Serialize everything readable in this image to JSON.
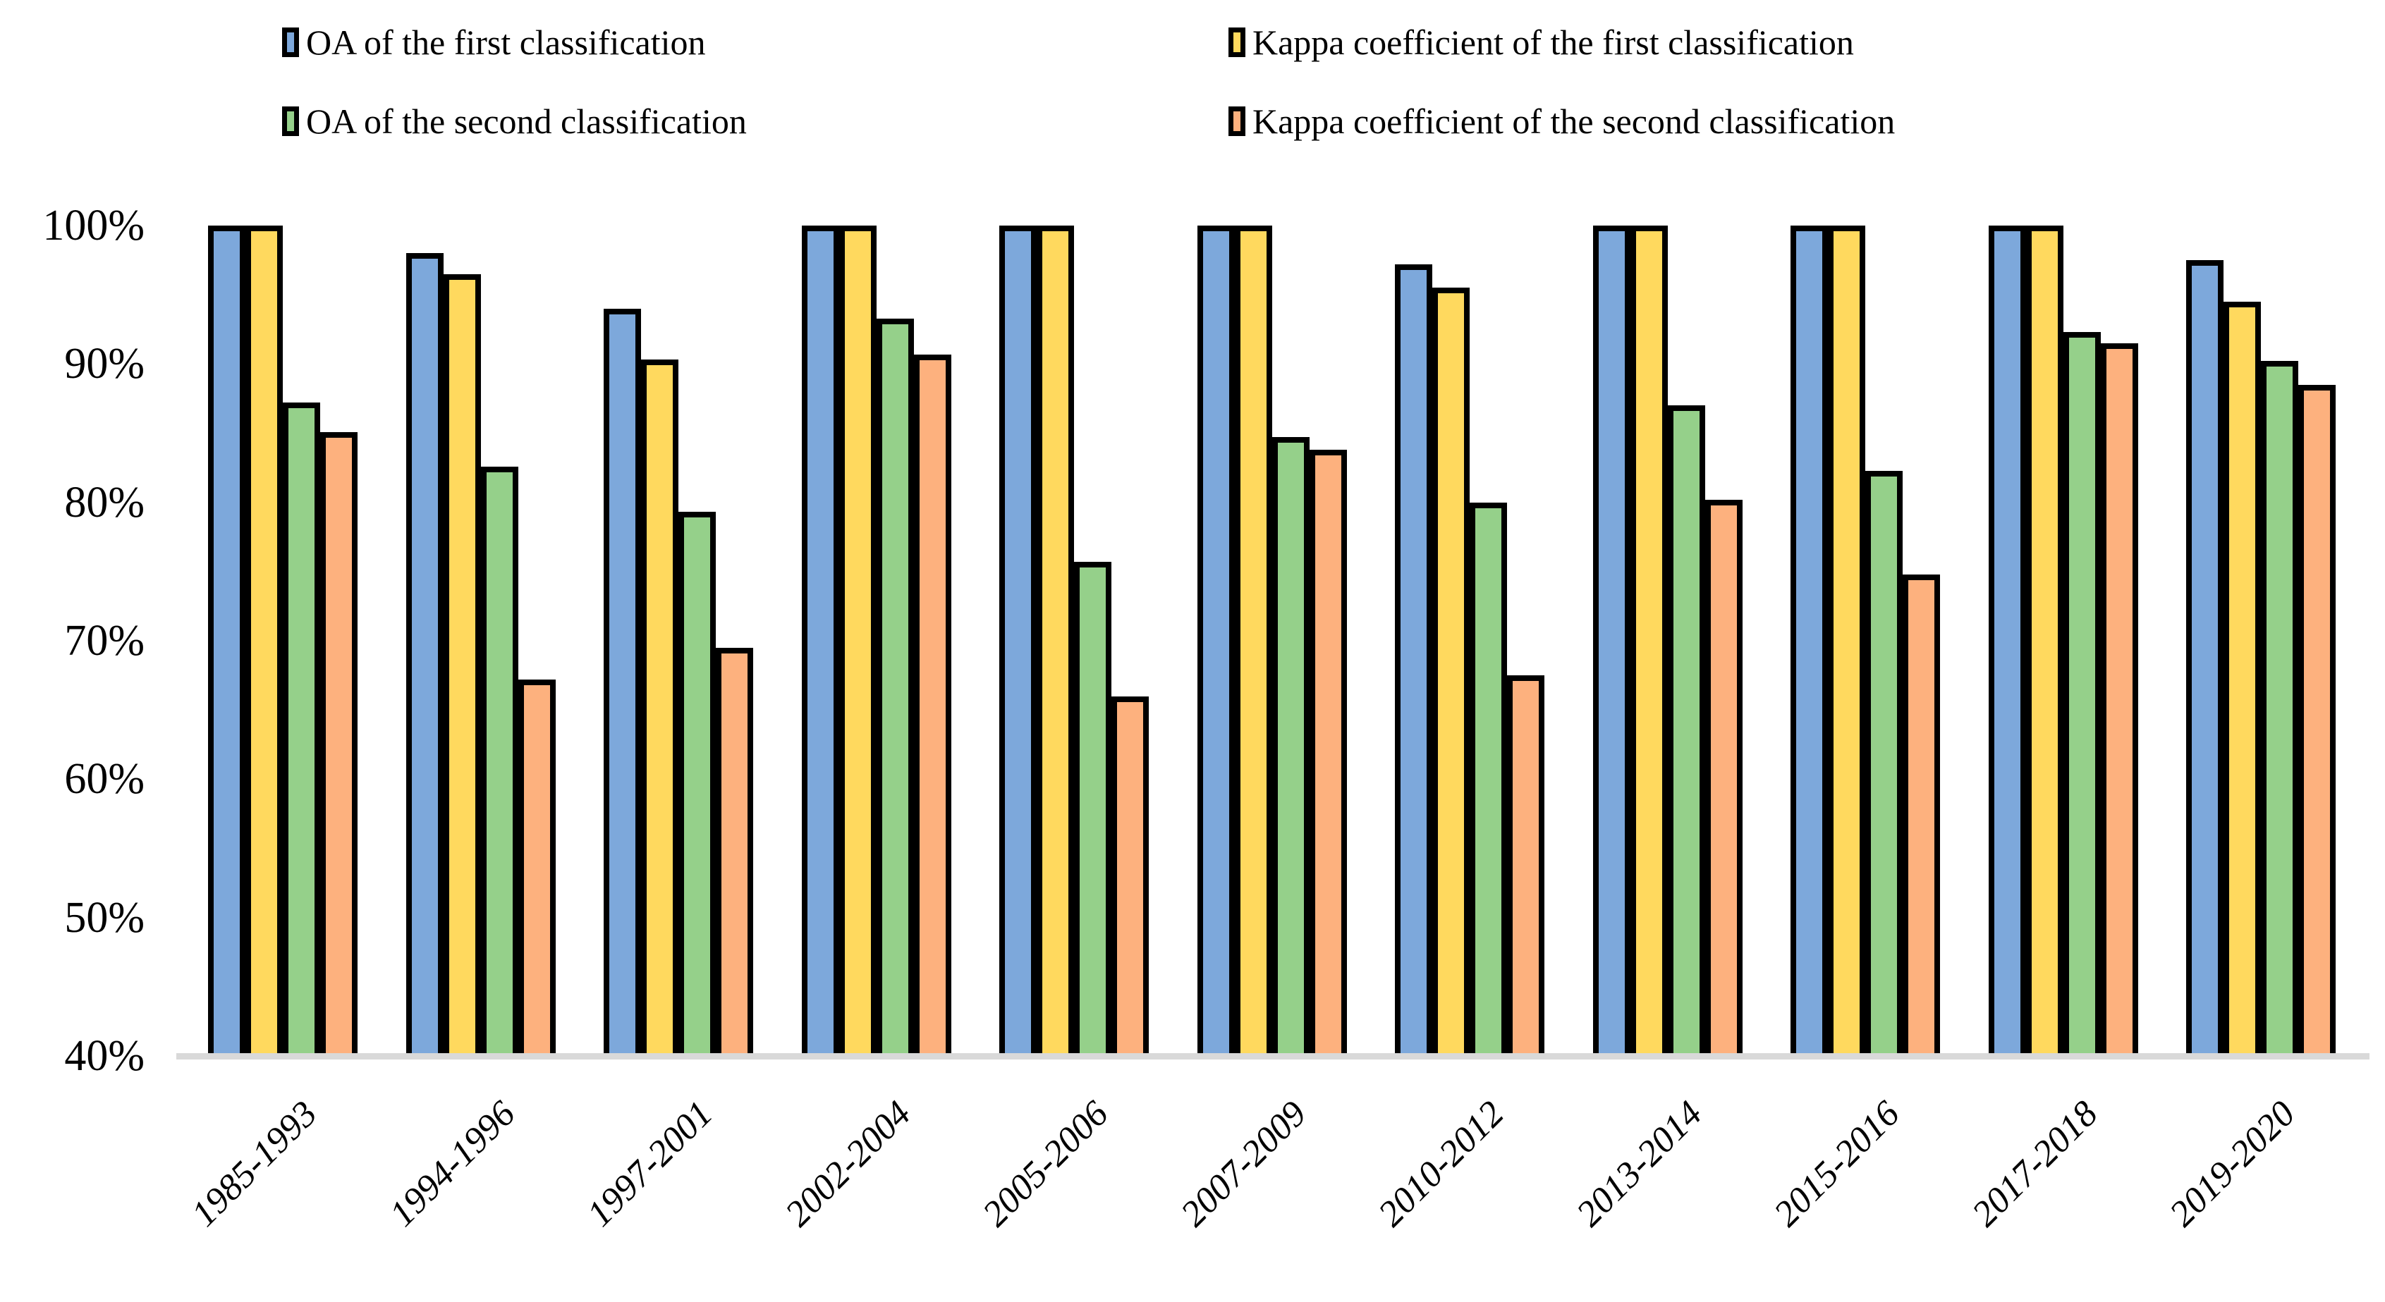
{
  "chart_data": {
    "type": "bar",
    "title": "",
    "xlabel": "",
    "ylabel": "",
    "categories": [
      "1985-1993",
      "1994-1996",
      "1997-2001",
      "2002-2004",
      "2005-2006",
      "2007-2009",
      "2010-2012",
      "2013-2014",
      "2015-2016",
      "2017-2018",
      "2019-2020"
    ],
    "series": [
      {
        "name": "OA of the first classification",
        "color": "#7DA8DB",
        "values": [
          100,
          98,
          94,
          100,
          100,
          100,
          97.2,
          100,
          100,
          100,
          97.5
        ]
      },
      {
        "name": "Kappa coefficient of the first classification",
        "color": "#FFD95E",
        "values": [
          100,
          96.5,
          90.3,
          100,
          100,
          100,
          95.5,
          100,
          100,
          100,
          94.5
        ]
      },
      {
        "name": "OA of the second classification",
        "color": "#95D08A",
        "values": [
          87.2,
          82.6,
          79.3,
          93.3,
          75.7,
          84.7,
          80.0,
          87.0,
          82.3,
          92.3,
          90.2
        ]
      },
      {
        "name": "Kappa coefficient of the second classification",
        "color": "#FDB17E",
        "values": [
          85.1,
          67.2,
          69.5,
          90.7,
          66.0,
          83.8,
          67.5,
          80.2,
          74.8,
          91.5,
          88.5
        ]
      }
    ],
    "ylim": [
      40,
      100
    ],
    "y_ticks": [
      "40%",
      "50%",
      "60%",
      "70%",
      "80%",
      "90%",
      "100%"
    ],
    "y_tick_values": [
      40,
      50,
      60,
      70,
      80,
      90,
      100
    ],
    "grid": "off",
    "legend_position": "top",
    "bar_border_color": "#000000",
    "axis_line_color": "#D9D9D9",
    "background_color": "#FFFFFF"
  }
}
